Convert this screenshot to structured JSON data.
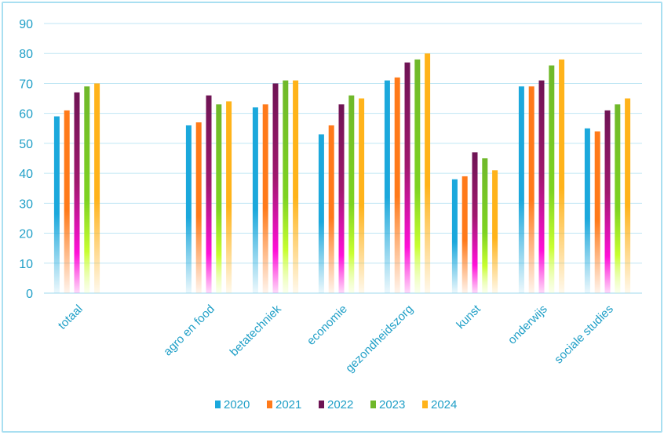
{
  "chart_data": {
    "type": "bar",
    "title": "",
    "xlabel": "",
    "ylabel": "",
    "ylim": [
      0,
      90
    ],
    "yticks": [
      0,
      10,
      20,
      30,
      40,
      50,
      60,
      70,
      80,
      90
    ],
    "grid": true,
    "legend_position": "bottom",
    "categories": [
      "totaal",
      "agro en food",
      "betatechniek",
      "economie",
      "gezondheidszorg",
      "kunst",
      "onderwijs",
      "sociale studies"
    ],
    "series": [
      {
        "name": "2020",
        "color": "#1ba8dc",
        "values": [
          59,
          56,
          62,
          53,
          71,
          38,
          69,
          55
        ]
      },
      {
        "name": "2021",
        "color": "#ff7a1a",
        "values": [
          61,
          57,
          63,
          56,
          72,
          39,
          69,
          54
        ]
      },
      {
        "name": "2022",
        "color": "#6e1454",
        "values": [
          67,
          66,
          70,
          63,
          77,
          47,
          71,
          61
        ]
      },
      {
        "name": "2023",
        "color": "#6fb82a",
        "values": [
          69,
          63,
          71,
          66,
          78,
          45,
          76,
          63
        ]
      },
      {
        "name": "2024",
        "color": "#ffb31a",
        "values": [
          70,
          64,
          71,
          65,
          80,
          41,
          78,
          65
        ]
      }
    ]
  }
}
